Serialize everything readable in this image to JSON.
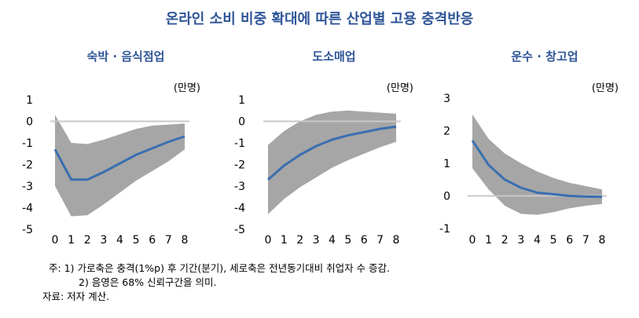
{
  "title": "온라인 소비 비중 확대에 따른 산업별 고용 충격반응",
  "notes": [
    "주: 1) 가로축은 충격(1%p) 후 기간(분기), 세로축은 전년동기대비 취업자 수 증감.",
    "2) 음영은 68% 신뢰구간을 의미.",
    "자료: 저자 계산."
  ],
  "colors": {
    "title": "#2f5597",
    "line": "#3a6fb0",
    "band": "#a6a6a6",
    "zero": "#c8c8c8"
  },
  "chart_data": [
    {
      "type": "line",
      "title": "숙박 · 음식점업",
      "unit": "(만명)",
      "x": [
        0,
        1,
        2,
        3,
        4,
        5,
        6,
        7,
        8
      ],
      "ylim": [
        -5,
        1
      ],
      "yticks": [
        1,
        0,
        -1,
        -2,
        -3,
        -4,
        -5
      ],
      "series": [
        {
          "values": [
            -1.3,
            -2.7,
            -2.7,
            -2.35,
            -1.95,
            -1.55,
            -1.25,
            -0.95,
            -0.7
          ]
        }
      ],
      "band": {
        "upper": [
          0.3,
          -1.0,
          -1.05,
          -0.85,
          -0.6,
          -0.35,
          -0.2,
          -0.15,
          -0.1
        ],
        "lower": [
          -3.0,
          -4.4,
          -4.35,
          -3.85,
          -3.3,
          -2.75,
          -2.3,
          -1.85,
          -1.3
        ]
      },
      "grid": false
    },
    {
      "type": "line",
      "title": "도소매업",
      "unit": "(만명)",
      "x": [
        0,
        1,
        2,
        3,
        4,
        5,
        6,
        7,
        8
      ],
      "ylim": [
        -5,
        1
      ],
      "yticks": [
        1,
        0,
        -1,
        -2,
        -3,
        -4,
        -5
      ],
      "series": [
        {
          "values": [
            -2.7,
            -2.05,
            -1.55,
            -1.15,
            -0.85,
            -0.65,
            -0.5,
            -0.35,
            -0.25
          ]
        }
      ],
      "band": {
        "upper": [
          -1.1,
          -0.45,
          0.0,
          0.3,
          0.45,
          0.5,
          0.45,
          0.4,
          0.35
        ],
        "lower": [
          -4.3,
          -3.6,
          -3.05,
          -2.6,
          -2.15,
          -1.8,
          -1.5,
          -1.2,
          -0.95
        ]
      },
      "grid": false
    },
    {
      "type": "line",
      "title": "운수 · 창고업",
      "unit": "(만명)",
      "x": [
        0,
        1,
        2,
        3,
        4,
        5,
        6,
        7,
        8
      ],
      "ylim": [
        -1,
        3
      ],
      "yticks": [
        3,
        2,
        1,
        0,
        -1
      ],
      "series": [
        {
          "values": [
            1.7,
            0.95,
            0.5,
            0.25,
            0.1,
            0.05,
            0.0,
            -0.02,
            -0.03
          ]
        }
      ],
      "band": {
        "upper": [
          2.5,
          1.75,
          1.3,
          1.0,
          0.75,
          0.55,
          0.4,
          0.3,
          0.2
        ],
        "lower": [
          0.85,
          0.2,
          -0.3,
          -0.55,
          -0.58,
          -0.5,
          -0.38,
          -0.3,
          -0.25
        ]
      },
      "grid": false
    }
  ]
}
